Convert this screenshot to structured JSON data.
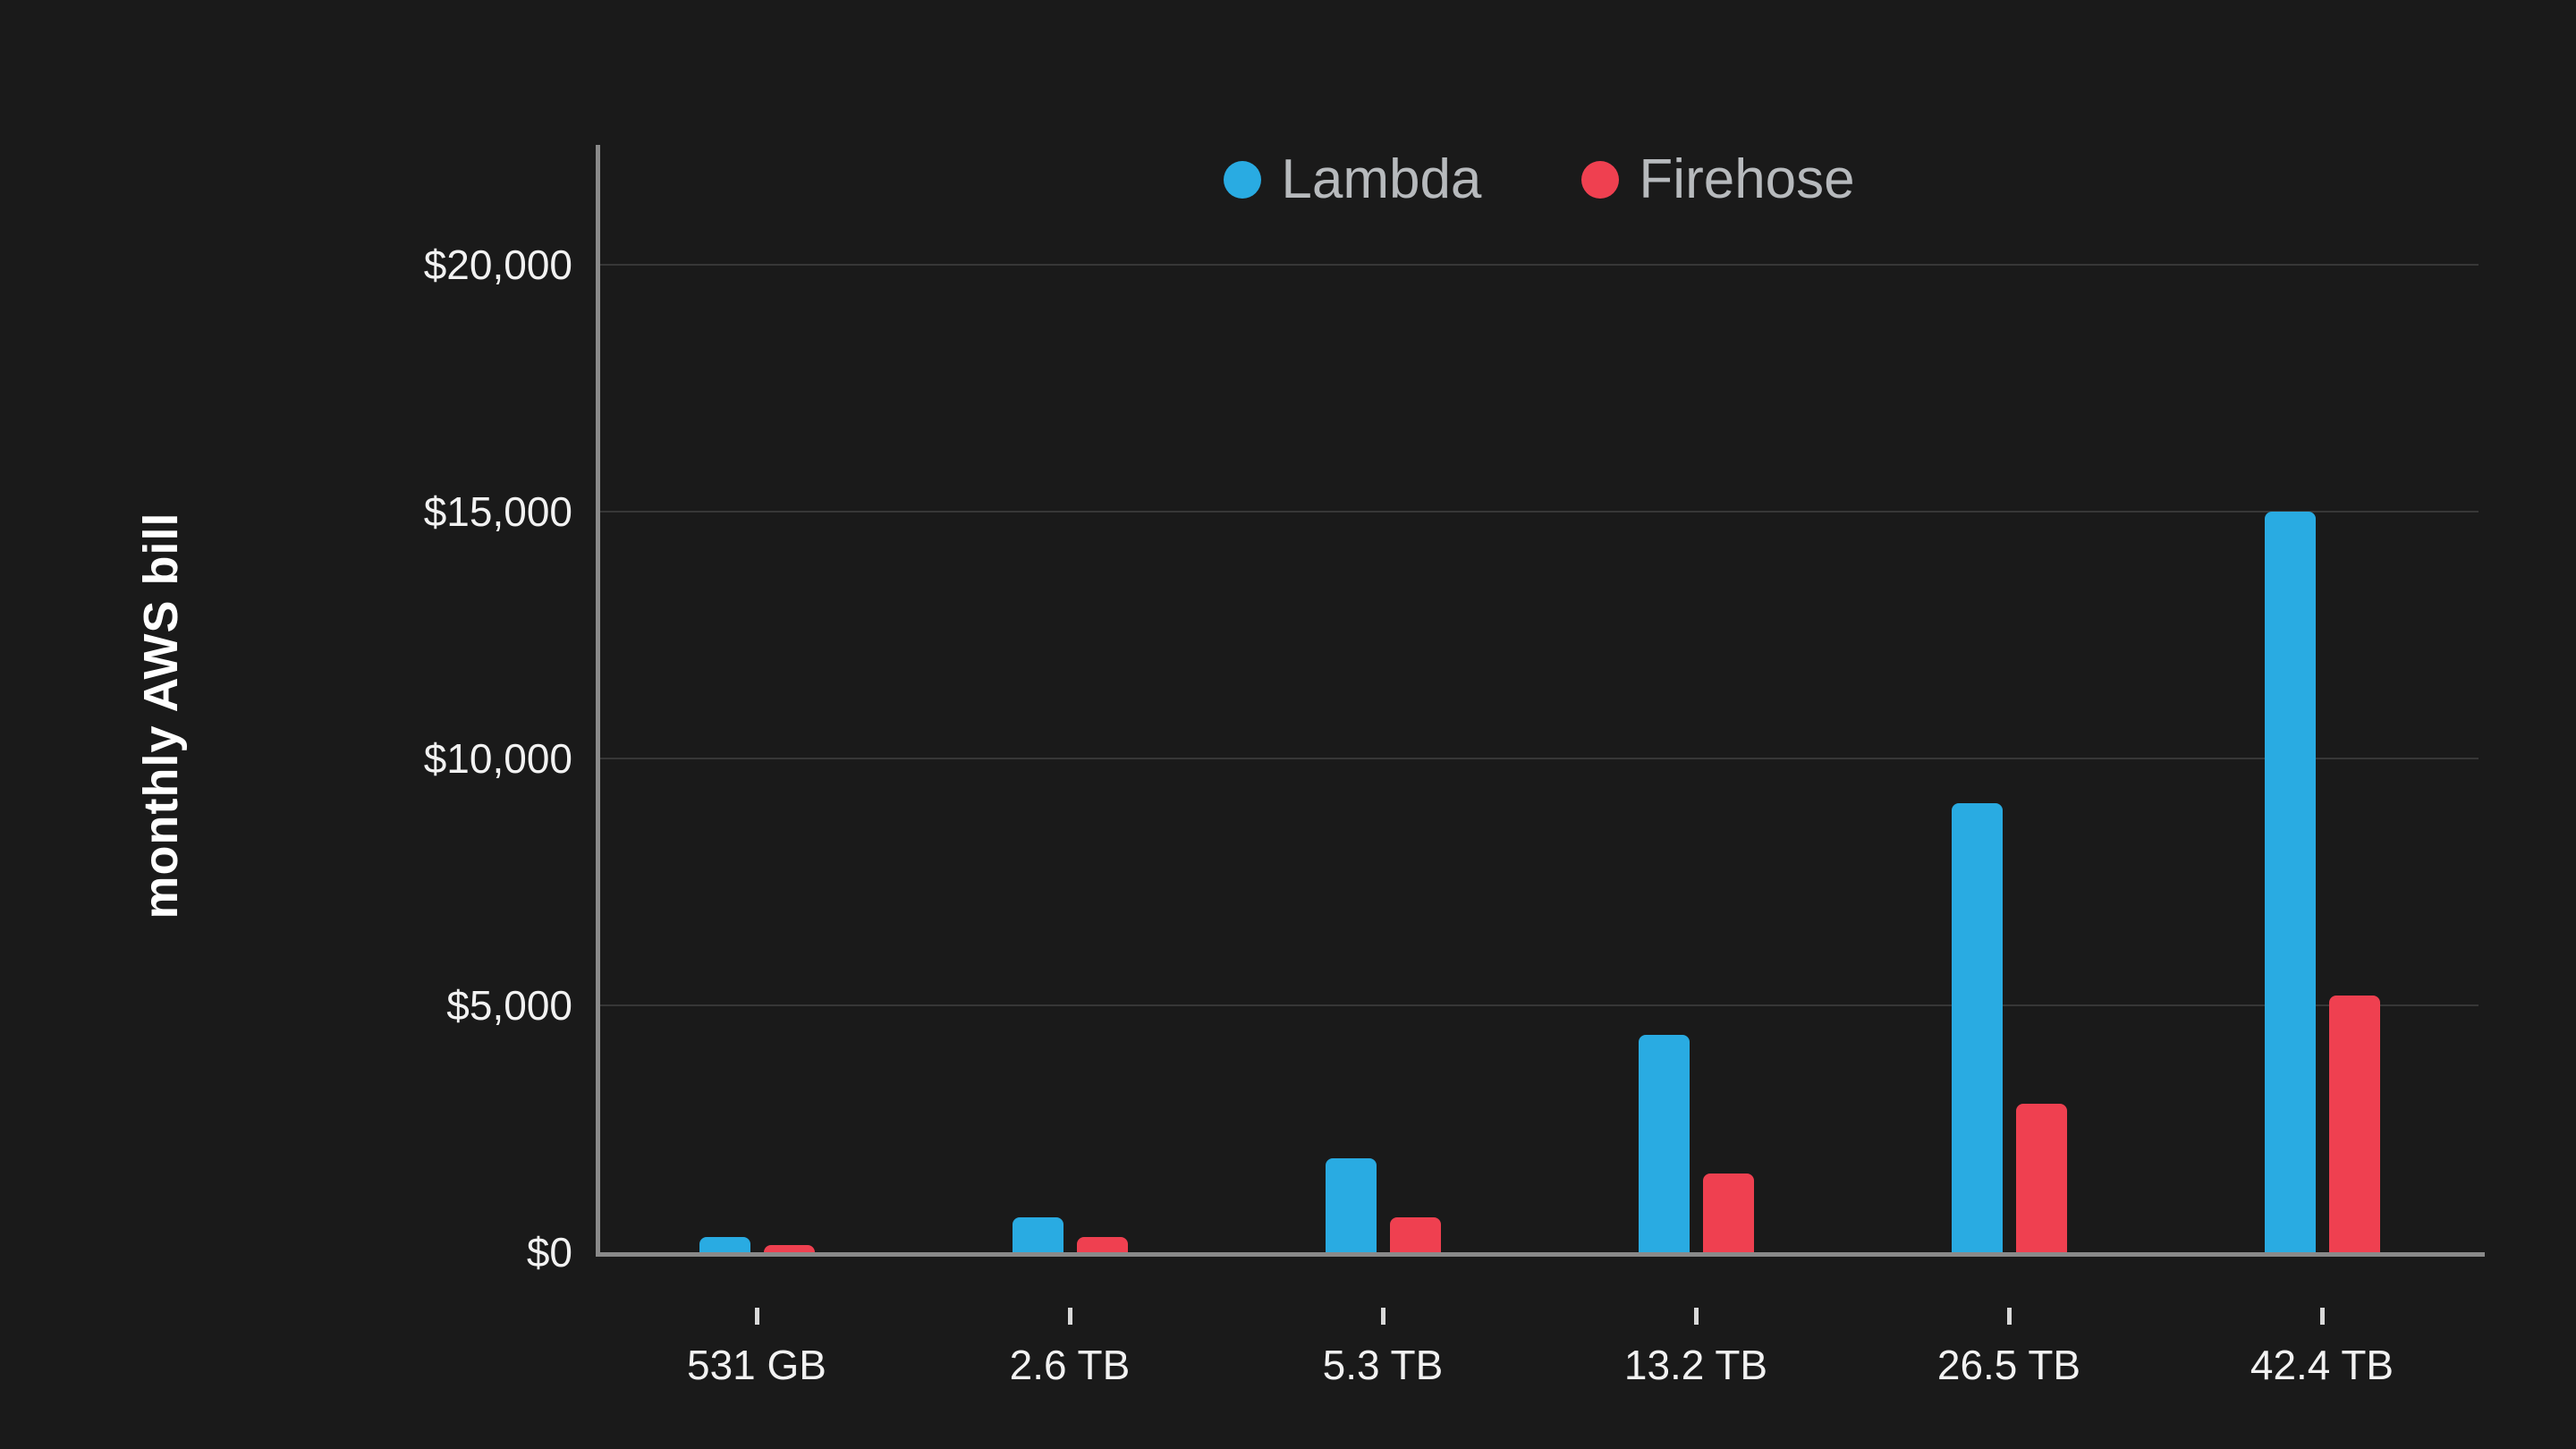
{
  "chart_data": {
    "type": "bar",
    "title": "",
    "xlabel": "",
    "ylabel": "monthly AWS bill",
    "categories": [
      "531 GB",
      "2.6 TB",
      "5.3 TB",
      "13.2 TB",
      "26.5 TB",
      "42.4 TB"
    ],
    "series": [
      {
        "name": "Lambda",
        "color": "#29abe2",
        "values": [
          300,
          700,
          1900,
          4400,
          9100,
          15000
        ]
      },
      {
        "name": "Firehose",
        "color": "#ef4050",
        "values": [
          150,
          300,
          700,
          1600,
          3000,
          5200
        ]
      }
    ],
    "ylim": [
      0,
      20000
    ],
    "y_ticks": [
      0,
      5000,
      10000,
      15000,
      20000
    ],
    "y_tick_labels": [
      "$0",
      "$5,000",
      "$10,000",
      "$15,000",
      "$20,000"
    ],
    "grid": "horizontal",
    "legend_position": "top-center"
  },
  "colors": {
    "background": "#1a1a1a",
    "grid": "#373737",
    "axis": "#8a8a8a",
    "tick_label": "#f2f2f2",
    "tick_mark": "#d9d9d9",
    "legend_text": "#b7babd",
    "axis_title": "#ffffff"
  }
}
